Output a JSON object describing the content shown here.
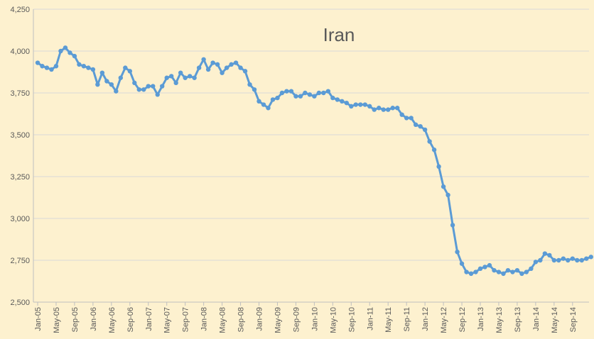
{
  "chart_data": {
    "type": "line",
    "title": "Iran",
    "xlabel": "",
    "ylabel": "",
    "ylim": [
      2500,
      4250
    ],
    "yticks": [
      2500,
      2750,
      3000,
      3250,
      3500,
      3750,
      4000,
      4250
    ],
    "ytick_labels": [
      "2,500",
      "2,750",
      "3,000",
      "3,250",
      "3,500",
      "3,750",
      "4,000",
      "4,250"
    ],
    "xtick_labels": [
      "Jan-05",
      "May-05",
      "Sep-05",
      "Jan-06",
      "May-06",
      "Sep-06",
      "Jan-07",
      "May-07",
      "Sep-07",
      "Jan-08",
      "May-08",
      "Sep-08",
      "Jan-09",
      "May-09",
      "Sep-09",
      "Jan-10",
      "May-10",
      "Sep-10",
      "Jan-11",
      "May-11",
      "Sep-11",
      "Jan-12",
      "May-12",
      "Sep-12",
      "Jan-13",
      "May-13",
      "Sep-13",
      "Jan-14",
      "May-14",
      "Sep-14"
    ],
    "grid": "horizontal",
    "colors": {
      "line": "#5b9bd5",
      "background": "#fdf1cf",
      "grid": "#d9d9d9",
      "axis": "#bfbfbf",
      "text": "#595959"
    },
    "series": [
      {
        "start": "Jan-05",
        "frequency": "monthly",
        "values": [
          3930,
          3910,
          3900,
          3890,
          3910,
          4000,
          4020,
          3990,
          3970,
          3920,
          3910,
          3900,
          3890,
          3800,
          3870,
          3820,
          3800,
          3760,
          3840,
          3900,
          3880,
          3810,
          3770,
          3770,
          3790,
          3790,
          3740,
          3790,
          3840,
          3850,
          3810,
          3870,
          3840,
          3850,
          3840,
          3900,
          3950,
          3890,
          3930,
          3920,
          3870,
          3900,
          3920,
          3930,
          3900,
          3880,
          3800,
          3770,
          3700,
          3680,
          3660,
          3710,
          3720,
          3750,
          3760,
          3760,
          3730,
          3730,
          3750,
          3740,
          3730,
          3750,
          3750,
          3760,
          3720,
          3710,
          3700,
          3690,
          3670,
          3680,
          3680,
          3680,
          3670,
          3650,
          3660,
          3650,
          3650,
          3660,
          3660,
          3620,
          3600,
          3600,
          3560,
          3550,
          3530,
          3460,
          3410,
          3310,
          3190,
          3140,
          2960,
          2800,
          2730,
          2680,
          2670,
          2680,
          2700,
          2710,
          2720,
          2690,
          2680,
          2670,
          2690,
          2680,
          2690,
          2670,
          2680,
          2700,
          2740,
          2750,
          2790,
          2780,
          2750,
          2750,
          2760,
          2750,
          2760,
          2750,
          2750,
          2760,
          2770
        ]
      }
    ]
  }
}
